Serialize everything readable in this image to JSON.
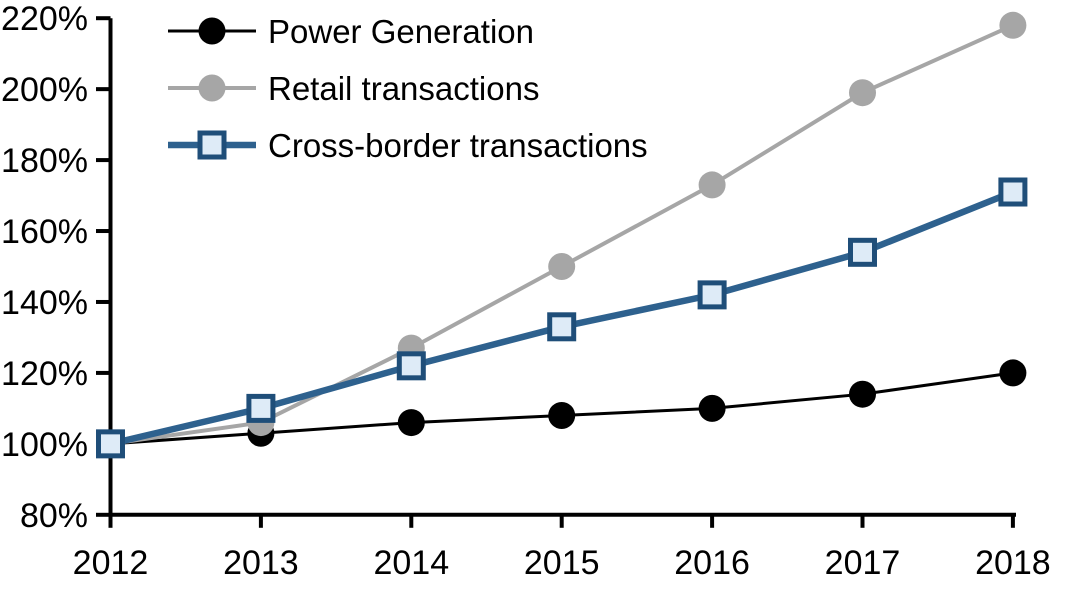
{
  "chart_data": {
    "type": "line",
    "title": "",
    "xlabel": "",
    "ylabel": "",
    "categories": [
      "2012",
      "2013",
      "2014",
      "2015",
      "2016",
      "2017",
      "2018"
    ],
    "series": [
      {
        "name": "Power Generation",
        "line_color": "#000000",
        "line_width": 3,
        "marker": "circle",
        "marker_fill": "#000000",
        "marker_stroke": "none",
        "values": [
          100,
          103,
          106,
          108,
          110,
          114,
          120
        ]
      },
      {
        "name": "Retail transactions",
        "line_color": "#A6A6A6",
        "line_width": 4,
        "marker": "circle",
        "marker_fill": "#A6A6A6",
        "marker_stroke": "none",
        "values": [
          100,
          106,
          127,
          150,
          173,
          199,
          218
        ]
      },
      {
        "name": "Cross-border transactions",
        "line_color": "#2E618E",
        "line_width": 6.5,
        "marker": "square",
        "marker_fill": "#DEEBF7",
        "marker_stroke": "#1F4E79",
        "values": [
          100,
          110,
          122,
          133,
          142,
          154,
          171
        ]
      }
    ],
    "ylim": [
      80,
      220
    ],
    "ytick_step": 20,
    "ytick_suffix": "%",
    "grid": false,
    "legend_position": "top-left",
    "axis_color": "#000000",
    "background": "#FFFFFF"
  }
}
